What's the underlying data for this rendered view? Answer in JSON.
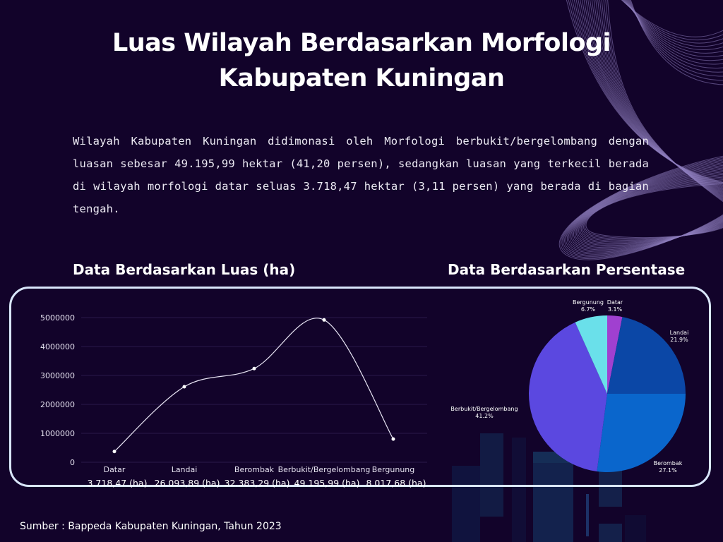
{
  "title_line1": "Luas Wilayah Berdasarkan Morfologi",
  "title_line2": "Kabupaten Kuningan",
  "intro": "Wilayah Kabupaten Kuningan didimonasi oleh Morfologi berbukit/bergelombang dengan luasan sebesar 49.195,99 hektar (41,20 persen), sedangkan luasan yang terkecil berada di wilayah morfologi datar seluas 3.718,47 hektar (3,11 persen) yang berada di bagian tengah.",
  "left_heading": "Data Berdasarkan Luas (ha)",
  "right_heading": "Data Berdasarkan Persentase",
  "source": "Sumber : Bappeda Kabupaten Kuningan, Tahun 2023",
  "colors": {
    "background": "#12032a",
    "panel_border": "#d9e6fb",
    "line": "#e8e4f4",
    "pie_datar": "#a040d0",
    "pie_landai": "#0b47a6",
    "pie_berombak": "#0a66cc",
    "pie_berbukit": "#5b48e0",
    "pie_bergunung": "#6ae0ea"
  },
  "chart_data": [
    {
      "type": "line",
      "title": "Data Berdasarkan Luas (ha)",
      "xlabel": "",
      "ylabel": "",
      "categories": [
        "Datar",
        "Landai",
        "Berombak",
        "Berbukit/Bergelombang",
        "Bergunung"
      ],
      "value_labels": [
        "3.718,47 (ha)",
        "26.093,89 (ha)",
        "32.383,29 (ha)",
        "49.195,99 (ha)",
        "8.017,68 (ha)"
      ],
      "values": [
        371847,
        2609389,
        3238329,
        4919599,
        801768
      ],
      "yticks": [
        "0",
        "1000000",
        "2000000",
        "3000000",
        "4000000",
        "5000000"
      ],
      "ylim": [
        0,
        5000000
      ],
      "grid": true,
      "smooth": true,
      "legend": "none"
    },
    {
      "type": "pie",
      "title": "Data Berdasarkan Persentase",
      "categories": [
        "Datar",
        "Landai",
        "Berombak",
        "Berbukit/Bergelombang",
        "Bergunung"
      ],
      "values": [
        3.1,
        21.9,
        27.1,
        41.2,
        6.7
      ],
      "labels": [
        "3.1%",
        "21.9%",
        "27.1%",
        "41.2%",
        "6.7%"
      ],
      "colors": [
        "#a040d0",
        "#0b47a6",
        "#0a66cc",
        "#5b48e0",
        "#6ae0ea"
      ],
      "start_angle": "12 o'clock, clockwise"
    }
  ]
}
